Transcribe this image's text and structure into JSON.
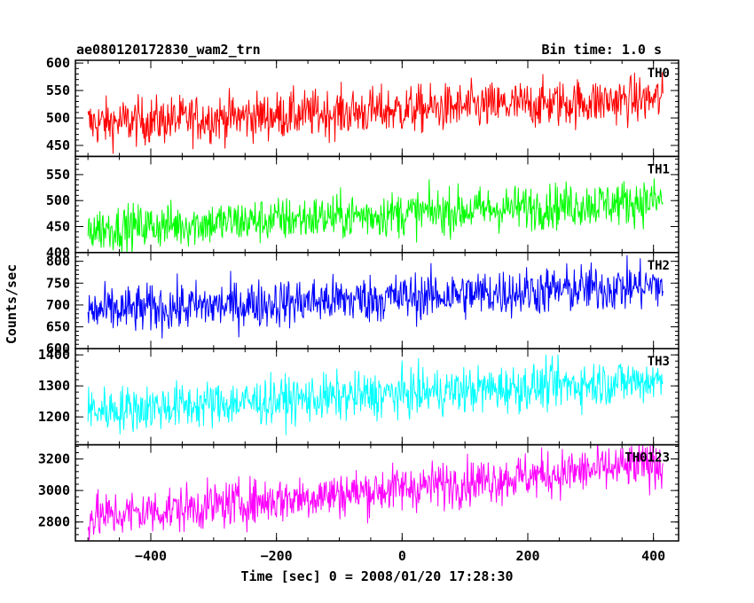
{
  "chart_data": {
    "type": "line",
    "title": "ae080120172830_wam2_trn",
    "subtitle": "Bin time: 1.0 s",
    "xlabel": "Time [sec] 0 = 2008/01/20 17:28:30",
    "ylabel": "Counts/sec",
    "xlim": [
      -520,
      440
    ],
    "x_ticks": [
      -400,
      -200,
      0,
      200,
      400
    ],
    "x_tick_labels": [
      "−400",
      "−200",
      "0",
      "200",
      "400"
    ],
    "x_range": [
      -500,
      415
    ],
    "panels": [
      {
        "name": "TH0",
        "color": "#ff0000",
        "ylim": [
          430,
          605
        ],
        "y_ticks": [
          450,
          500,
          550,
          600
        ],
        "y_tick_labels": [
          "450",
          "500",
          "550",
          "600"
        ],
        "trend_start": 490,
        "trend_end": 535,
        "noise": 22
      },
      {
        "name": "TH1",
        "color": "#00ff00",
        "ylim": [
          400,
          585
        ],
        "y_ticks": [
          400,
          450,
          500,
          550
        ],
        "y_tick_labels": [
          "400",
          "450",
          "500",
          "550"
        ],
        "trend_start": 445,
        "trend_end": 500,
        "noise": 22
      },
      {
        "name": "TH2",
        "color": "#0000ff",
        "ylim": [
          600,
          820
        ],
        "y_ticks": [
          600,
          650,
          700,
          750,
          800
        ],
        "y_tick_labels": [
          "600",
          "650",
          "700",
          "750",
          "800"
        ],
        "trend_start": 685,
        "trend_end": 745,
        "noise": 28
      },
      {
        "name": "TH3",
        "color": "#00ffff",
        "ylim": [
          1110,
          1420
        ],
        "y_ticks": [
          1200,
          1300,
          1400
        ],
        "y_tick_labels": [
          "1200",
          "1300",
          "1400"
        ],
        "trend_start": 1220,
        "trend_end": 1320,
        "noise": 38
      },
      {
        "name": "TH0123",
        "color": "#ff00ff",
        "ylim": [
          2680,
          3290
        ],
        "y_ticks": [
          2800,
          3000,
          3200
        ],
        "y_tick_labels": [
          "2800",
          "3000",
          "3200"
        ],
        "trend_start": 2830,
        "trend_end": 3170,
        "noise": 75
      }
    ]
  }
}
